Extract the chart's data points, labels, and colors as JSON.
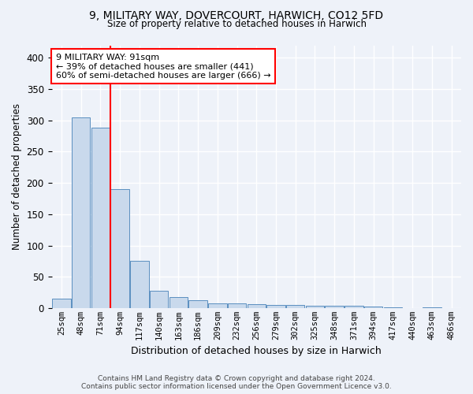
{
  "title_line1": "9, MILITARY WAY, DOVERCOURT, HARWICH, CO12 5FD",
  "title_line2": "Size of property relative to detached houses in Harwich",
  "xlabel": "Distribution of detached houses by size in Harwich",
  "ylabel": "Number of detached properties",
  "bar_labels": [
    "25sqm",
    "48sqm",
    "71sqm",
    "94sqm",
    "117sqm",
    "140sqm",
    "163sqm",
    "186sqm",
    "209sqm",
    "232sqm",
    "256sqm",
    "279sqm",
    "302sqm",
    "325sqm",
    "348sqm",
    "371sqm",
    "394sqm",
    "417sqm",
    "440sqm",
    "463sqm",
    "486sqm"
  ],
  "bar_values": [
    15,
    305,
    288,
    190,
    75,
    28,
    18,
    12,
    8,
    8,
    6,
    5,
    5,
    4,
    4,
    4,
    2,
    1,
    0,
    1,
    0
  ],
  "bar_color": "#c9d9ec",
  "bar_edge_color": "#5a8fc0",
  "red_line_x": 2.5,
  "annotation_text": "9 MILITARY WAY: 91sqm\n← 39% of detached houses are smaller (441)\n60% of semi-detached houses are larger (666) →",
  "annotation_box_color": "white",
  "annotation_box_edge": "red",
  "vline_color": "red",
  "footer_line1": "Contains HM Land Registry data © Crown copyright and database right 2024.",
  "footer_line2": "Contains public sector information licensed under the Open Government Licence v3.0.",
  "ylim": [
    0,
    420
  ],
  "background_color": "#eef2f9",
  "grid_color": "white"
}
